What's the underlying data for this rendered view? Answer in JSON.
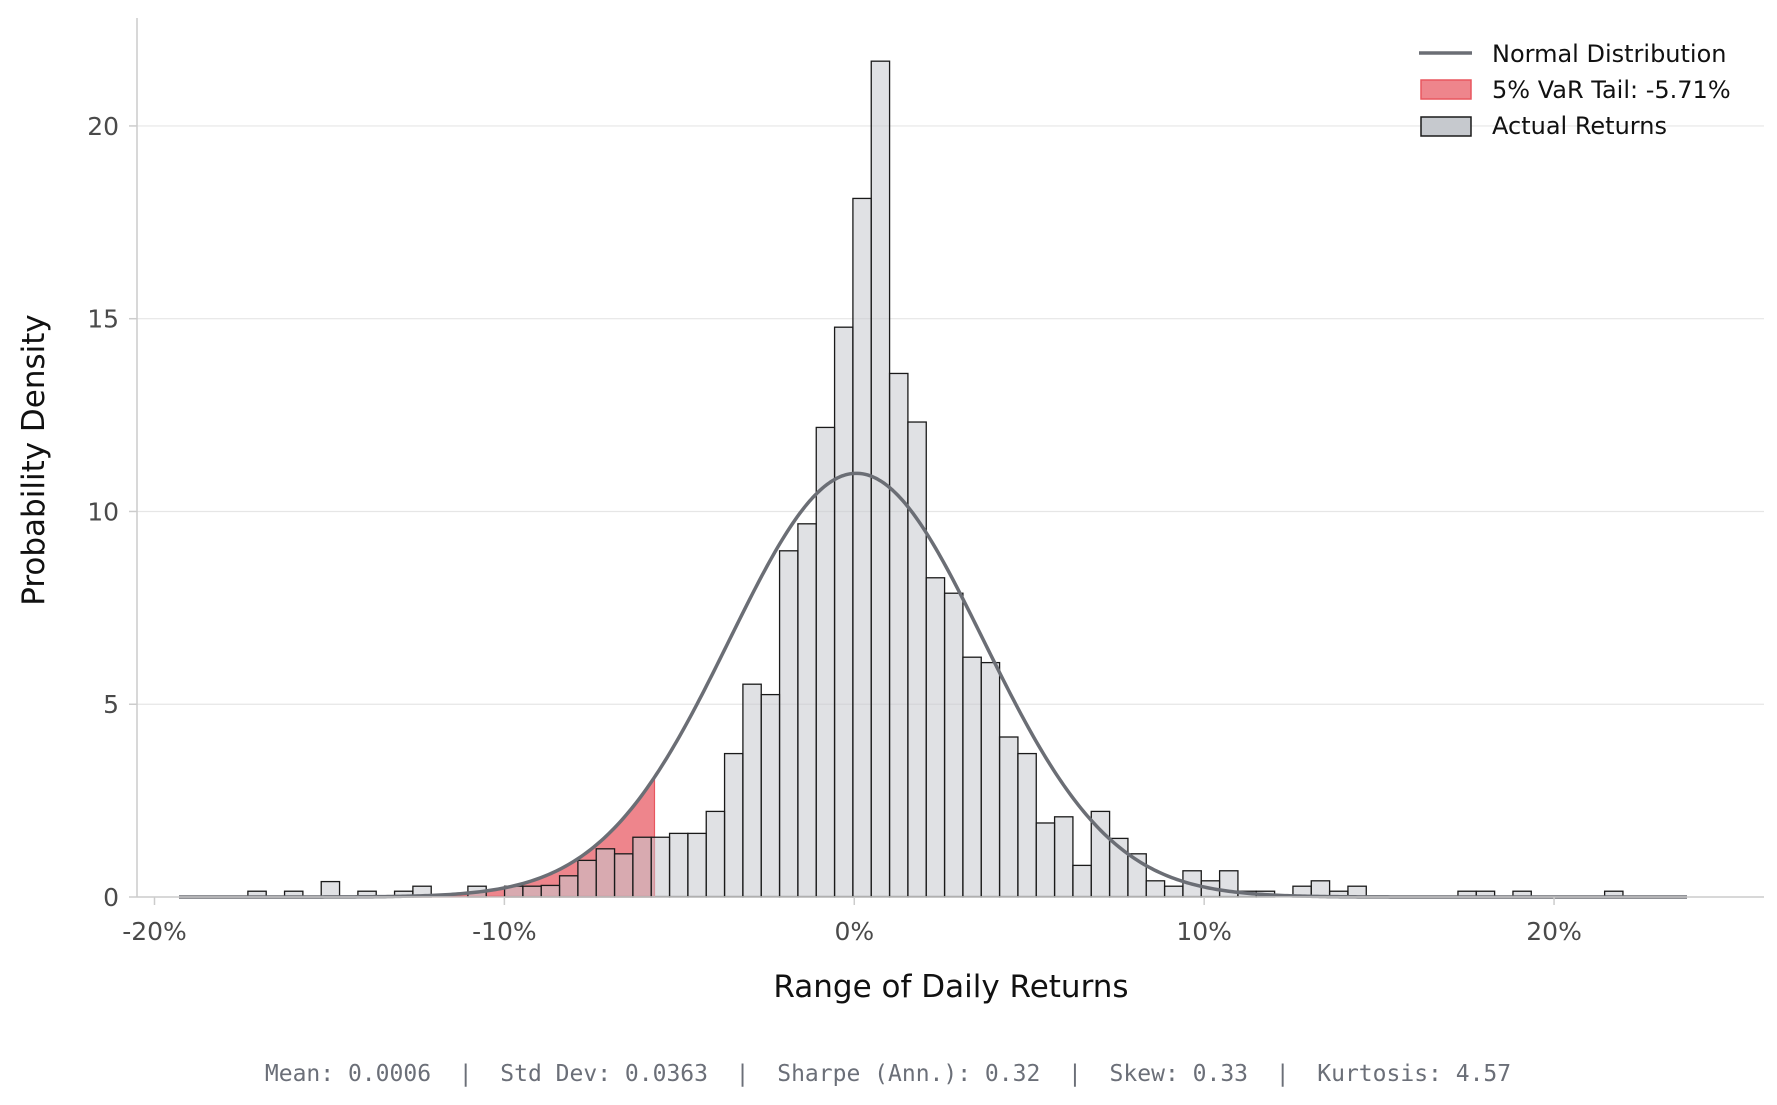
{
  "chart_data": {
    "type": "bar",
    "xlabel": "Range of Daily Returns",
    "ylabel": "Probability Density",
    "xlim": [
      -0.205,
      0.26
    ],
    "ylim": [
      0,
      22.8
    ],
    "x_ticks": [
      -0.2,
      -0.1,
      0.0,
      0.1,
      0.2
    ],
    "x_tick_labels": [
      "-20%",
      "-10%",
      "0%",
      "10%",
      "20%"
    ],
    "y_ticks": [
      0,
      5,
      10,
      15,
      20
    ],
    "y_tick_labels": [
      "0",
      "5",
      "10",
      "15",
      "20"
    ],
    "grid": "horizontal",
    "legend_position": "top-right",
    "colors": {
      "bars": "#c6c9ce",
      "bar_edge": "#1a1a1a",
      "normal_line": "#6b6e75",
      "var_tail": "#e8565f",
      "grid": "#e6e6e6",
      "axis": "#cccccc"
    },
    "histogram": {
      "name": "Actual Returns",
      "bin_width": 0.00524,
      "bins": [
        {
          "x0": -0.17331,
          "y": 0.15
        },
        {
          "x0": -0.16283,
          "y": 0.15
        },
        {
          "x0": -0.15235,
          "y": 0.4
        },
        {
          "x0": -0.14187,
          "y": 0.15
        },
        {
          "x0": -0.13139,
          "y": 0.15
        },
        {
          "x0": -0.12615,
          "y": 0.28
        },
        {
          "x0": -0.11043,
          "y": 0.28
        },
        {
          "x0": -0.09995,
          "y": 0.28
        },
        {
          "x0": -0.09471,
          "y": 0.28
        },
        {
          "x0": -0.08947,
          "y": 0.3
        },
        {
          "x0": -0.08423,
          "y": 0.55
        },
        {
          "x0": -0.07899,
          "y": 0.95
        },
        {
          "x0": -0.07375,
          "y": 1.25
        },
        {
          "x0": -0.06851,
          "y": 1.12
        },
        {
          "x0": -0.06327,
          "y": 1.55
        },
        {
          "x0": -0.05803,
          "y": 1.55
        },
        {
          "x0": -0.05279,
          "y": 1.65
        },
        {
          "x0": -0.04755,
          "y": 1.65
        },
        {
          "x0": -0.04231,
          "y": 2.22
        },
        {
          "x0": -0.03707,
          "y": 3.72
        },
        {
          "x0": -0.03183,
          "y": 5.52
        },
        {
          "x0": -0.02659,
          "y": 5.25
        },
        {
          "x0": -0.02135,
          "y": 8.98
        },
        {
          "x0": -0.01611,
          "y": 9.68
        },
        {
          "x0": -0.01087,
          "y": 12.18
        },
        {
          "x0": -0.00563,
          "y": 14.78
        },
        {
          "x0": -0.00039,
          "y": 18.12
        },
        {
          "x0": 0.00485,
          "y": 21.68
        },
        {
          "x0": 0.01009,
          "y": 13.58
        },
        {
          "x0": 0.01533,
          "y": 12.32
        },
        {
          "x0": 0.02057,
          "y": 8.28
        },
        {
          "x0": 0.02581,
          "y": 7.88
        },
        {
          "x0": 0.03105,
          "y": 6.22
        },
        {
          "x0": 0.03629,
          "y": 6.08
        },
        {
          "x0": 0.04153,
          "y": 4.15
        },
        {
          "x0": 0.04677,
          "y": 3.72
        },
        {
          "x0": 0.05201,
          "y": 1.92
        },
        {
          "x0": 0.05725,
          "y": 2.08
        },
        {
          "x0": 0.06249,
          "y": 0.82
        },
        {
          "x0": 0.06773,
          "y": 2.22
        },
        {
          "x0": 0.07297,
          "y": 1.52
        },
        {
          "x0": 0.07821,
          "y": 1.12
        },
        {
          "x0": 0.08345,
          "y": 0.42
        },
        {
          "x0": 0.08869,
          "y": 0.28
        },
        {
          "x0": 0.09393,
          "y": 0.68
        },
        {
          "x0": 0.09917,
          "y": 0.42
        },
        {
          "x0": 0.10441,
          "y": 0.68
        },
        {
          "x0": 0.10965,
          "y": 0.15
        },
        {
          "x0": 0.11489,
          "y": 0.15
        },
        {
          "x0": 0.12537,
          "y": 0.28
        },
        {
          "x0": 0.13061,
          "y": 0.42
        },
        {
          "x0": 0.13585,
          "y": 0.15
        },
        {
          "x0": 0.14109,
          "y": 0.28
        },
        {
          "x0": 0.17253,
          "y": 0.15
        },
        {
          "x0": 0.17777,
          "y": 0.15
        },
        {
          "x0": 0.18825,
          "y": 0.15
        },
        {
          "x0": 0.21445,
          "y": 0.15
        }
      ],
      "baseline_range": [
        -0.193,
        0.238
      ]
    },
    "normal_distribution": {
      "name": "Normal Distribution",
      "mean": 0.0006,
      "std": 0.0363,
      "x_range": [
        -0.193,
        0.238
      ]
    },
    "var_tail": {
      "name": "5% VaR Tail: -5.71%",
      "threshold": -0.0571
    },
    "legend": [
      {
        "label": "Normal Distribution",
        "kind": "line"
      },
      {
        "label": "5% VaR Tail: -5.71%",
        "kind": "fill"
      },
      {
        "label": "Actual Returns",
        "kind": "bar"
      }
    ],
    "stats_text": "Mean: 0.0006  |  Std Dev: 0.0363  |  Sharpe (Ann.): 0.32  |  Skew: 0.33  |  Kurtosis: 4.57"
  }
}
